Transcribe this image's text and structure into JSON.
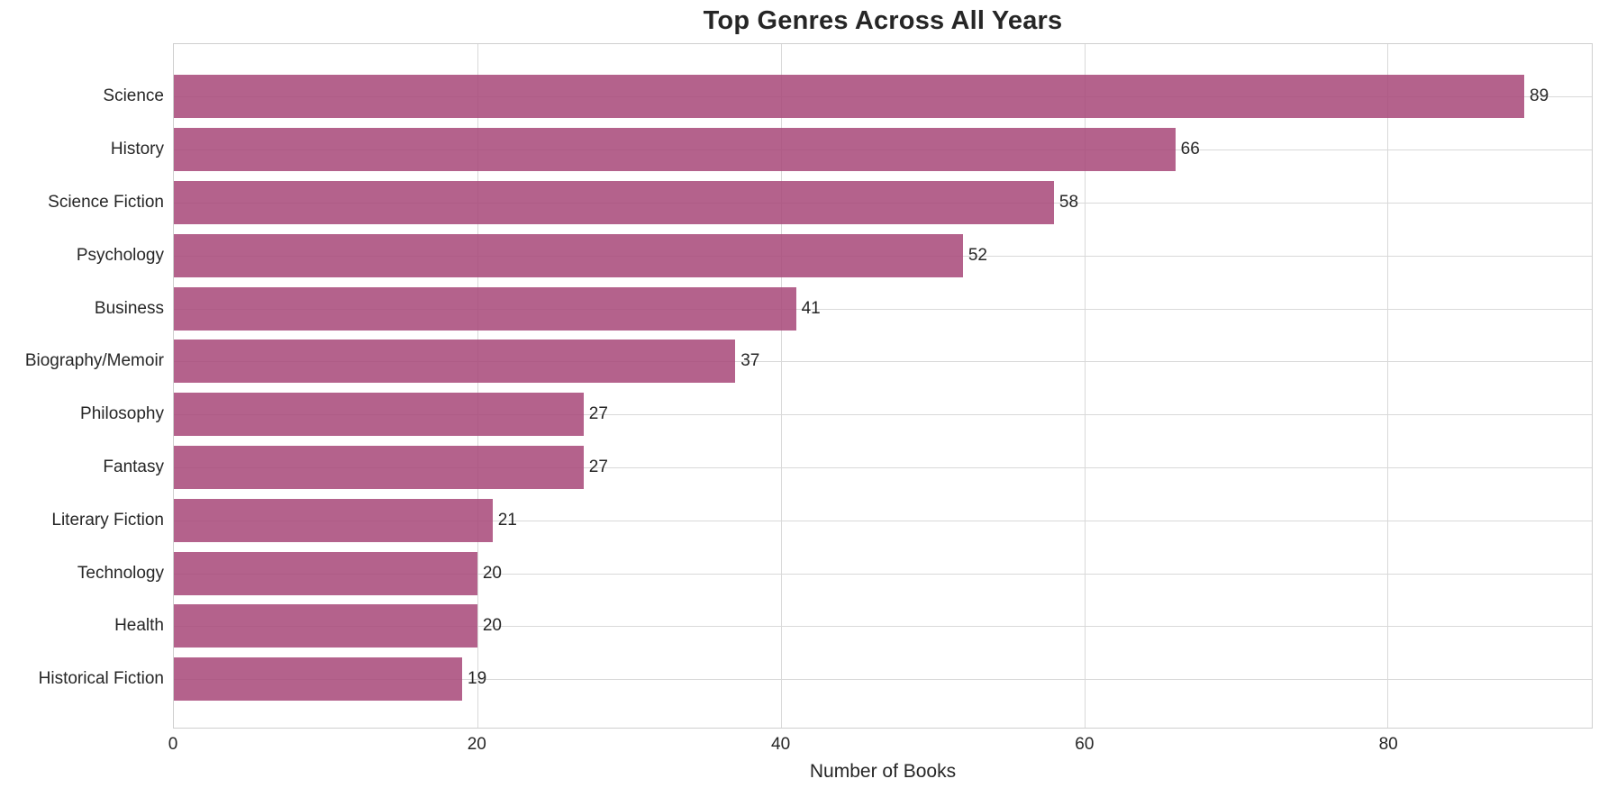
{
  "title": "Top Genres Across All Years",
  "chart_data": {
    "type": "bar",
    "orientation": "horizontal",
    "title": "Top Genres Across All Years",
    "xlabel": "Number of Books",
    "ylabel": "",
    "categories": [
      "Science",
      "History",
      "Science Fiction",
      "Psychology",
      "Business",
      "Biography/Memoir",
      "Philosophy",
      "Fantasy",
      "Literary Fiction",
      "Technology",
      "Health",
      "Historical Fiction"
    ],
    "values": [
      89,
      66,
      58,
      52,
      41,
      37,
      27,
      27,
      21,
      20,
      20,
      19
    ],
    "bar_value_labels": [
      "89",
      "66",
      "58",
      "52",
      "41",
      "37",
      "27",
      "27",
      "21",
      "20",
      "20",
      "19"
    ],
    "xticks": [
      0,
      20,
      40,
      60,
      80
    ],
    "xlim": [
      0,
      93.45
    ],
    "grid": true,
    "legend": false
  },
  "style": {
    "bar_fill": "rgba(167,70,120,0.85)",
    "grid_color": "#d9d9d9",
    "spine_color": "#cfcfcf",
    "text_color": "#262626",
    "background": "#ffffff"
  }
}
